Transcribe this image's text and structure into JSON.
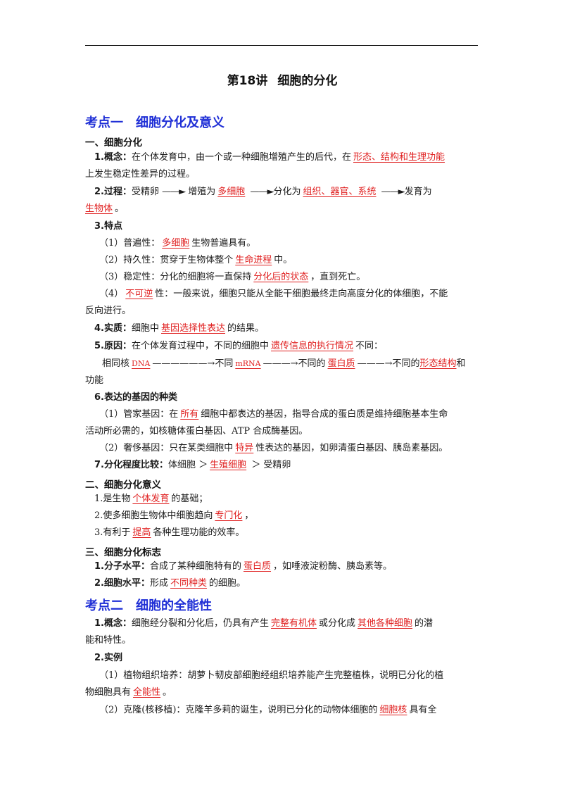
{
  "doc": {
    "title_num": "第18讲",
    "title_text": "细胞的分化"
  },
  "k1": {
    "heading_num": "考点一",
    "heading_text": "细胞分化及意义",
    "s1": {
      "title": "一、细胞分化",
      "p1_label": "1.概念：",
      "p1_text": "在个体发育中，由一个或一种细胞增殖产生的后代，在",
      "p1_ans": "形态、结构和生理功能",
      "p1_cont": "上发生稳定性差异的过程。",
      "p2_label": "2.过程：",
      "p2_a": "受精卵",
      "p2_arrow": "——►",
      "p2_b": "增殖为",
      "p2_ans1": "多细胞",
      "p2_c": "分化为",
      "p2_ans2": "组织、器官、系统",
      "p2_d": "发育为",
      "p2_ans3": "生物体",
      "p2_end": "。",
      "p3_label": "3.特点",
      "f1_pre": "（1）普遍性：",
      "f1_ans": "多细胞",
      "f1_post": "生物普遍具有。",
      "f2_pre": "（2）持久性：贯穿于生物体整个",
      "f2_ans": "生命进程",
      "f2_post": "中。",
      "f3_pre": "（3）稳定性：分化的细胞将一直保持",
      "f3_ans": "分化后的状态",
      "f3_post": "，直到死亡。",
      "f4_pre": "（4）",
      "f4_ans": "不可逆",
      "f4_post": "性：一般来说，细胞只能从全能干细胞最终走向高度分化的体细胞，不能",
      "f4_cont": "反向进行。",
      "p4_label": "4.实质：",
      "p4_pre": "细胞中",
      "p4_ans": "基因选择性表达",
      "p4_post": "的结果。",
      "p5_label": "5.原因：",
      "p5_pre": "在个体发育过程中，不同的细胞中",
      "p5_ans": "遗传信息的执行情况",
      "p5_post": "不同：",
      "c_pre": "相同核",
      "c_ans1": "DNA",
      "c_arrow1": "——————→",
      "c_mid1": "不同",
      "c_ans2": "mRNA",
      "c_arrow2": "———→",
      "c_mid2": "不同的",
      "c_ans3": "蛋白质",
      "c_arrow3": "———→",
      "c_mid3": "不同的",
      "c_ans4": "形态结构",
      "c_post": "和",
      "c_cont": "功能",
      "p6_label": "6.表达的基因的种类",
      "g1_pre": "（1）管家基因：在",
      "g1_ans": "所有",
      "g1_post": "细胞中都表达的基因，指导合成的蛋白质是维持细胞基本生命",
      "g1_cont": "活动所必需的，如核糖体蛋白基因、ATP 合成酶基因。",
      "g2_pre": "（2）奢侈基因：只在某类细胞中",
      "g2_ans": "特异",
      "g2_post": "性表达的基因，如卵清蛋白基因、胰岛素基因。",
      "p7_label": "7.分化程度比较：",
      "p7_pre": "体细胞 ＞",
      "p7_ans": "生殖细胞",
      "p7_post": "＞ 受精卵"
    },
    "s2": {
      "title": "二、细胞分化意义",
      "m1_pre": "1.是生物",
      "m1_ans": "个体发育",
      "m1_post": "的基础；",
      "m2_pre": "2.使多细胞生物体中细胞趋向",
      "m2_ans": "专门化",
      "m2_post": "，",
      "m3_pre": "3.有利于",
      "m3_ans": "提高",
      "m3_post": "各种生理功能的效率。"
    },
    "s3": {
      "title": "三、细胞分化标志",
      "n1_label": "1.分子水平：",
      "n1_pre": "合成了某种细胞特有的",
      "n1_ans": "蛋白质",
      "n1_post": "，如唾液淀粉酶、胰岛素等。",
      "n2_label": "2.细胞水平：",
      "n2_pre": "形成",
      "n2_ans": "不同种类",
      "n2_post": "的细胞。"
    }
  },
  "k2": {
    "heading_num": "考点二",
    "heading_text": "细胞的全能性",
    "q1_label": "1.概念：",
    "q1_pre": "细胞经分裂和分化后，仍具有产生",
    "q1_ans1": "完整有机体",
    "q1_mid": "或分化成",
    "q1_ans2": "其他各种细胞",
    "q1_post": "的潜",
    "q1_cont": "能和特性。",
    "q2_label": "2.实例",
    "e1_text": "（1）植物组织培养：胡萝卜韧皮部细胞经组织培养能产生完整植株，说明已分化的植",
    "e1_cont_pre": "物细胞具有",
    "e1_ans": "全能性",
    "e1_post": "。",
    "e2_pre": "（2）克隆(核移植)：克隆羊多莉的诞生，说明已分化的动物体细胞的",
    "e2_ans": "细胞核",
    "e2_post": "具有全"
  }
}
